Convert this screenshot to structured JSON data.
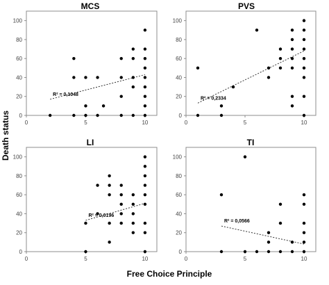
{
  "figure": {
    "xlabel": "Free Choice Principle",
    "ylabel": "Death status"
  },
  "chart_data": [
    {
      "type": "scatter",
      "title": "MCS",
      "r2_label": "R² = 0,1048",
      "xlim": [
        0,
        11
      ],
      "ylim": [
        0,
        110
      ],
      "xticks": [
        0,
        5,
        10
      ],
      "yticks": [
        0,
        20,
        40,
        60,
        80,
        100
      ],
      "trendline": {
        "x": [
          2,
          10
        ],
        "y": [
          17,
          43
        ]
      },
      "points": [
        {
          "x": 2,
          "y": 0
        },
        {
          "x": 4,
          "y": 0
        },
        {
          "x": 4,
          "y": 40
        },
        {
          "x": 4,
          "y": 60
        },
        {
          "x": 5,
          "y": 0
        },
        {
          "x": 5,
          "y": 10
        },
        {
          "x": 5,
          "y": 40
        },
        {
          "x": 6,
          "y": 0
        },
        {
          "x": 6,
          "y": 40
        },
        {
          "x": 6.5,
          "y": 10
        },
        {
          "x": 8,
          "y": 0
        },
        {
          "x": 8,
          "y": 20
        },
        {
          "x": 8,
          "y": 40
        },
        {
          "x": 8,
          "y": 60
        },
        {
          "x": 9,
          "y": 0
        },
        {
          "x": 9,
          "y": 30
        },
        {
          "x": 9,
          "y": 40
        },
        {
          "x": 9,
          "y": 60
        },
        {
          "x": 9,
          "y": 70
        },
        {
          "x": 10,
          "y": 0
        },
        {
          "x": 10,
          "y": 10
        },
        {
          "x": 10,
          "y": 20
        },
        {
          "x": 10,
          "y": 30
        },
        {
          "x": 10,
          "y": 40
        },
        {
          "x": 10,
          "y": 50
        },
        {
          "x": 10,
          "y": 60
        },
        {
          "x": 10,
          "y": 70
        },
        {
          "x": 10,
          "y": 90
        }
      ]
    },
    {
      "type": "scatter",
      "title": "PVS",
      "r2_label": "R² = 0,2334",
      "xlim": [
        0,
        11
      ],
      "ylim": [
        0,
        110
      ],
      "xticks": [
        0,
        5,
        10
      ],
      "yticks": [
        0,
        20,
        40,
        60,
        80,
        100
      ],
      "trendline": {
        "x": [
          1,
          10
        ],
        "y": [
          13,
          68
        ]
      },
      "points": [
        {
          "x": 1,
          "y": 0
        },
        {
          "x": 1,
          "y": 50
        },
        {
          "x": 3,
          "y": 0
        },
        {
          "x": 3,
          "y": 10
        },
        {
          "x": 4,
          "y": 30
        },
        {
          "x": 6,
          "y": 90
        },
        {
          "x": 7,
          "y": 40
        },
        {
          "x": 7,
          "y": 50
        },
        {
          "x": 8,
          "y": 50
        },
        {
          "x": 8,
          "y": 60
        },
        {
          "x": 8,
          "y": 70
        },
        {
          "x": 9,
          "y": 10
        },
        {
          "x": 9,
          "y": 20
        },
        {
          "x": 9,
          "y": 50
        },
        {
          "x": 9,
          "y": 60
        },
        {
          "x": 9,
          "y": 70
        },
        {
          "x": 9,
          "y": 80
        },
        {
          "x": 9,
          "y": 90
        },
        {
          "x": 10,
          "y": 0
        },
        {
          "x": 10,
          "y": 20
        },
        {
          "x": 10,
          "y": 40
        },
        {
          "x": 10,
          "y": 50
        },
        {
          "x": 10,
          "y": 60
        },
        {
          "x": 10,
          "y": 70
        },
        {
          "x": 10,
          "y": 80
        },
        {
          "x": 10,
          "y": 90
        },
        {
          "x": 10,
          "y": 100
        }
      ]
    },
    {
      "type": "scatter",
      "title": "LI",
      "r2_label": "R² = 0,0196",
      "xlim": [
        0,
        11
      ],
      "ylim": [
        0,
        110
      ],
      "xticks": [
        0,
        5,
        10
      ],
      "yticks": [
        0,
        20,
        40,
        60,
        80,
        100
      ],
      "trendline": {
        "x": [
          5,
          10
        ],
        "y": [
          33,
          51
        ]
      },
      "points": [
        {
          "x": 5,
          "y": 0
        },
        {
          "x": 5,
          "y": 30
        },
        {
          "x": 6,
          "y": 40
        },
        {
          "x": 6,
          "y": 70
        },
        {
          "x": 7,
          "y": 10
        },
        {
          "x": 7,
          "y": 30
        },
        {
          "x": 7,
          "y": 60
        },
        {
          "x": 7,
          "y": 70
        },
        {
          "x": 7,
          "y": 80
        },
        {
          "x": 8,
          "y": 30
        },
        {
          "x": 8,
          "y": 40
        },
        {
          "x": 8,
          "y": 50
        },
        {
          "x": 8,
          "y": 60
        },
        {
          "x": 8,
          "y": 70
        },
        {
          "x": 9,
          "y": 20
        },
        {
          "x": 9,
          "y": 30
        },
        {
          "x": 9,
          "y": 40
        },
        {
          "x": 9,
          "y": 50
        },
        {
          "x": 9,
          "y": 60
        },
        {
          "x": 10,
          "y": 0
        },
        {
          "x": 10,
          "y": 20
        },
        {
          "x": 10,
          "y": 30
        },
        {
          "x": 10,
          "y": 50
        },
        {
          "x": 10,
          "y": 60
        },
        {
          "x": 10,
          "y": 70
        },
        {
          "x": 10,
          "y": 80
        },
        {
          "x": 10,
          "y": 90
        },
        {
          "x": 10,
          "y": 100
        }
      ]
    },
    {
      "type": "scatter",
      "title": "TI",
      "r2_label": "R² = 0,0566",
      "xlim": [
        0,
        11
      ],
      "ylim": [
        0,
        110
      ],
      "xticks": [
        0,
        5,
        10
      ],
      "yticks": [
        0,
        20,
        40,
        60,
        80,
        100
      ],
      "trendline": {
        "x": [
          3,
          10
        ],
        "y": [
          27,
          8
        ]
      },
      "points": [
        {
          "x": 3,
          "y": 0
        },
        {
          "x": 3,
          "y": 60
        },
        {
          "x": 5,
          "y": 0
        },
        {
          "x": 5,
          "y": 100
        },
        {
          "x": 6,
          "y": 0
        },
        {
          "x": 7,
          "y": 0
        },
        {
          "x": 7,
          "y": 10
        },
        {
          "x": 7,
          "y": 20
        },
        {
          "x": 8,
          "y": 0
        },
        {
          "x": 8,
          "y": 30
        },
        {
          "x": 8,
          "y": 50
        },
        {
          "x": 9,
          "y": 0
        },
        {
          "x": 9,
          "y": 10
        },
        {
          "x": 10,
          "y": 0
        },
        {
          "x": 10,
          "y": 10
        },
        {
          "x": 10,
          "y": 20
        },
        {
          "x": 10,
          "y": 30
        },
        {
          "x": 10,
          "y": 50
        },
        {
          "x": 10,
          "y": 60
        }
      ]
    }
  ]
}
